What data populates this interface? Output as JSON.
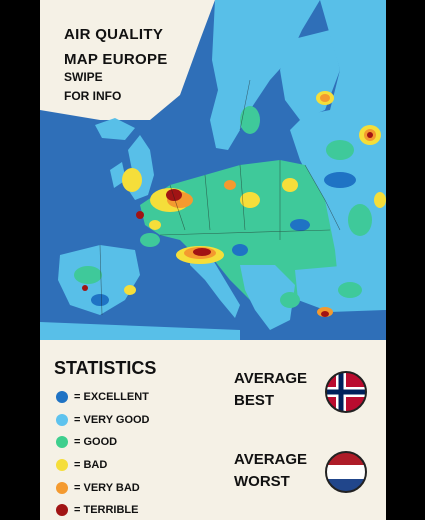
{
  "map": {
    "title_line1": "AIR QUALITY",
    "title_line2": "MAP EUROPE",
    "subtitle": "SWIPE\nFOR INFO"
  },
  "statistics": {
    "title": "STATISTICS",
    "legend": [
      {
        "label": "= EXCELLENT",
        "color": "#1f73c4"
      },
      {
        "label": "= VERY GOOD",
        "color": "#5ec3ee"
      },
      {
        "label": "= GOOD",
        "color": "#3ecf8e"
      },
      {
        "label": "= BAD",
        "color": "#f5de3a"
      },
      {
        "label": "= VERY BAD",
        "color": "#f49a2f"
      },
      {
        "label": "= TERRIBLE",
        "color": "#a11414"
      }
    ],
    "average_best": {
      "line1": "AVERAGE",
      "line2": "BEST",
      "flag": "norway-flag-icon"
    },
    "average_worst": {
      "line1": "AVERAGE",
      "line2": "WORST",
      "flag": "netherlands-flag-icon"
    }
  },
  "colors": {
    "sea": "#2f6fb8",
    "background": "#f5f1e6",
    "frame": "#000000"
  }
}
